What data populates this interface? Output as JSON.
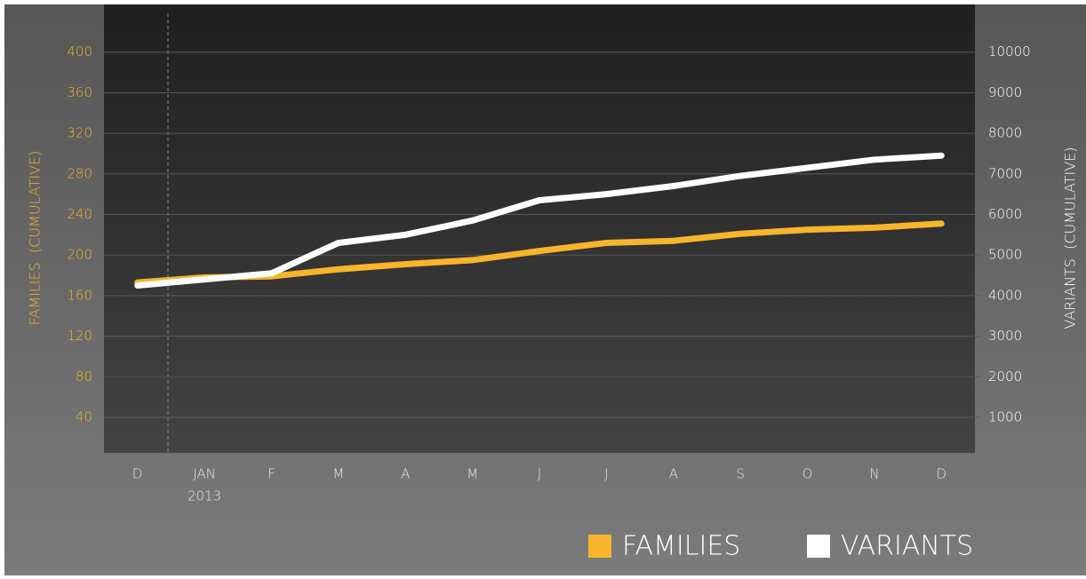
{
  "chart_data": {
    "type": "line",
    "categories": [
      "D",
      "JAN",
      "F",
      "M",
      "A",
      "M",
      "J",
      "J",
      "A",
      "S",
      "O",
      "N",
      "D"
    ],
    "annotations": [
      "2013"
    ],
    "ylabel": "FAMILIES  (CUMULATIVE)",
    "y2label": "VARIANTS  (CUMULATIVE)",
    "ylim": [
      5,
      447
    ],
    "yticks": [
      40,
      80,
      120,
      160,
      200,
      240,
      280,
      320,
      360,
      400
    ],
    "y2lim": [
      125,
      11175
    ],
    "y2ticks": [
      1000,
      2000,
      3000,
      4000,
      5000,
      6000,
      7000,
      8000,
      9000,
      10000
    ],
    "grid": true,
    "legend": "bottom-right",
    "series": [
      {
        "name": "FAMILIES",
        "color": "#f7b52c",
        "axis": "y",
        "values": [
          173,
          178,
          179,
          186,
          191,
          195,
          204,
          212,
          214,
          221,
          225,
          227,
          231
        ]
      },
      {
        "name": "VARIANTS",
        "color": "#ffffff",
        "axis": "y2",
        "values": [
          4250,
          4400,
          4550,
          5300,
          5500,
          5850,
          6350,
          6500,
          6700,
          6950,
          7150,
          7350,
          7450
        ]
      }
    ]
  }
}
